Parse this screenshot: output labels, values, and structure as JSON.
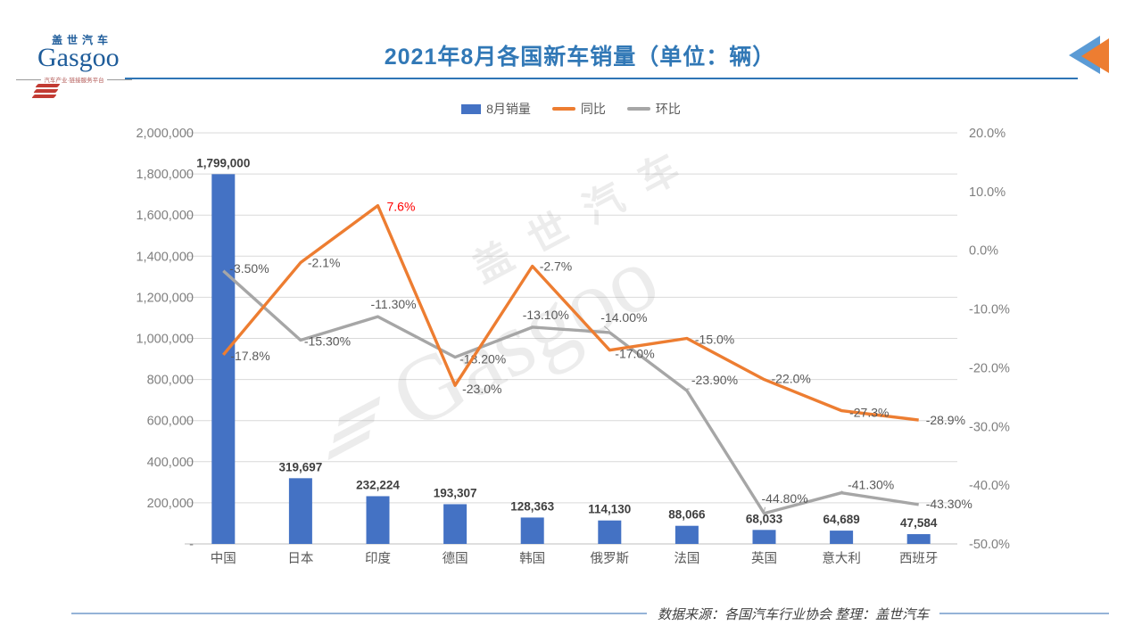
{
  "header": {
    "logo": {
      "cn": "盖世汽车",
      "en": "Gasgoo",
      "tagline": "汽车产业·链接服务平台"
    },
    "title": "2021年8月各国新车销量（单位：辆）"
  },
  "legend": [
    {
      "label": "8月销量",
      "type": "bar",
      "color": "#4472C4"
    },
    {
      "label": "同比",
      "type": "line",
      "color": "#ED7D31"
    },
    {
      "label": "环比",
      "type": "line",
      "color": "#A6A6A6"
    }
  ],
  "chart_data": {
    "type": "bar+line",
    "title": "2021年8月各国新车销量（单位：辆）",
    "categories": [
      "中国",
      "日本",
      "印度",
      "德国",
      "韩国",
      "俄罗斯",
      "法国",
      "英国",
      "意大利",
      "西班牙"
    ],
    "bar_series": {
      "name": "8月销量",
      "color": "#4472C4",
      "values": [
        1799000,
        319697,
        232224,
        193307,
        128363,
        114130,
        88066,
        68033,
        64689,
        47584
      ],
      "labels": [
        "1,799,000",
        "319,697",
        "232,224",
        "193,307",
        "128,363",
        "114,130",
        "88,066",
        "68,033",
        "64,689",
        "47,584"
      ]
    },
    "line_series": [
      {
        "name": "同比",
        "color": "#ED7D31",
        "values": [
          -17.8,
          -2.1,
          7.6,
          -23.0,
          -2.7,
          -17.0,
          -15.0,
          -22.0,
          -27.3,
          -28.9
        ],
        "labels": [
          "-17.8%",
          "-2.1%",
          "7.6%",
          "-23.0%",
          "-2.7%",
          "-17.0%",
          "-15.0%",
          "-22.0%",
          "-27.3%",
          "-28.9%"
        ]
      },
      {
        "name": "环比",
        "values": [
          -3.5,
          -15.3,
          -11.3,
          -18.2,
          -13.1,
          -14.0,
          -23.9,
          -44.8,
          -41.3,
          -43.3
        ],
        "color": "#A6A6A6",
        "labels": [
          "-3.50%",
          "-15.30%",
          "-11.30%",
          "-18.20%",
          "-13.10%",
          "-14.00%",
          "-23.90%",
          "-44.80%",
          "-41.30%",
          "-43.30%"
        ]
      }
    ],
    "left_axis": {
      "min": 0,
      "max": 2000000,
      "step": 200000,
      "grid": true,
      "tick_labels": [
        "2,000,000",
        "1,800,000",
        "1,600,000",
        "1,400,000",
        "1,200,000",
        "1,000,000",
        "800,000",
        "600,000",
        "400,000",
        "200,000",
        "-"
      ]
    },
    "right_axis": {
      "min": -50,
      "max": 20,
      "step": 10,
      "grid": false,
      "tick_labels": [
        "20.0%",
        "10.0%",
        "0.0%",
        "-10.0%",
        "-20.0%",
        "-30.0%",
        "-40.0%",
        "-50.0%"
      ]
    },
    "highlight_label": {
      "series": "同比",
      "index": 2,
      "color": "#FF0000"
    },
    "legend_position": "top"
  },
  "watermark": {
    "cn": "盖世汽车",
    "en": "Gasgoo"
  },
  "footer": {
    "source": "数据来源：各国汽车行业协会 整理：盖世汽车"
  },
  "colors": {
    "bar": "#4472C4",
    "yoy": "#ED7D31",
    "mom": "#A6A6A6",
    "title": "#3178B6",
    "grid": "#D9D9D9",
    "axis_text": "#7F7F7F",
    "data_label": "#595959",
    "bar_label": "#3F3F3F",
    "highlight": "#FF0000"
  }
}
